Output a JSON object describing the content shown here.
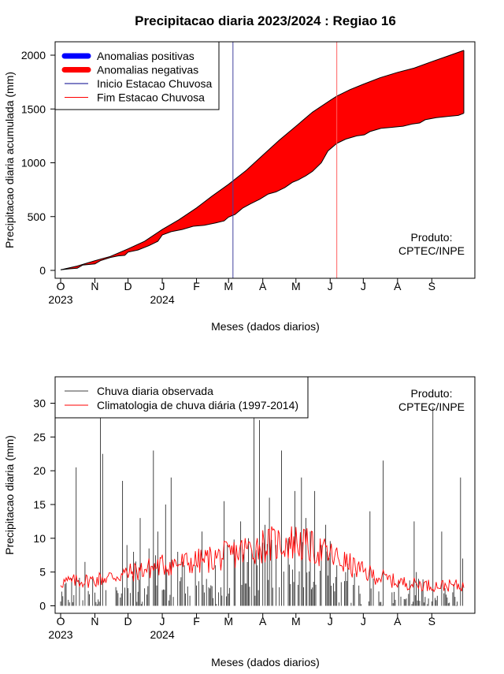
{
  "page": {
    "title": "Precipitacao diaria 2023/2024 : Regiao 16"
  },
  "chart_data": [
    {
      "type": "area",
      "title": "Precipitacao diaria 2023/2024 : Regiao 16",
      "xlabel": "Meses (dados diarios)",
      "ylabel": "Precipitacao diaria acumulada (mm)",
      "ylim": [
        0,
        2100
      ],
      "yticks": [
        0,
        500,
        1000,
        1500,
        2000
      ],
      "xlim_days": [
        -5,
        375
      ],
      "month_ticks": [
        {
          "day": 0,
          "label": "O"
        },
        {
          "day": 31,
          "label": "N"
        },
        {
          "day": 61,
          "label": "D"
        },
        {
          "day": 92,
          "label": "J"
        },
        {
          "day": 123,
          "label": "F"
        },
        {
          "day": 152,
          "label": "M"
        },
        {
          "day": 183,
          "label": "A"
        },
        {
          "day": 213,
          "label": "M"
        },
        {
          "day": 244,
          "label": "J"
        },
        {
          "day": 274,
          "label": "J"
        },
        {
          "day": 305,
          "label": "A"
        },
        {
          "day": 336,
          "label": "S"
        }
      ],
      "year_labels": [
        {
          "day": 0,
          "label": "2023"
        },
        {
          "day": 92,
          "label": "2024"
        }
      ],
      "credit": [
        "Produto:",
        "CPTEC/INPE"
      ],
      "legend": {
        "position": "top-left",
        "entries": [
          {
            "label": "Anomalias positivas",
            "color": "#0000ff",
            "style": "thick"
          },
          {
            "label": "Anomalias negativas",
            "color": "#ff0000",
            "style": "thick"
          },
          {
            "label": "Inicio Estacao Chuvosa",
            "color": "#00008b",
            "style": "thin"
          },
          {
            "label": "Fim Estacao Chuvosa",
            "color": "#ff0000",
            "style": "thin"
          }
        ]
      },
      "vlines": [
        {
          "day": 156,
          "color": "#4040a0",
          "name": "Inicio Estacao Chuvosa"
        },
        {
          "day": 250,
          "color": "#ff6060",
          "name": "Fim Estacao Chuvosa"
        }
      ],
      "series": [
        {
          "name": "Climatologia",
          "points": [
            [
              0,
              5
            ],
            [
              15,
              40
            ],
            [
              31,
              90
            ],
            [
              45,
              130
            ],
            [
              61,
              200
            ],
            [
              76,
              270
            ],
            [
              92,
              380
            ],
            [
              107,
              470
            ],
            [
              123,
              580
            ],
            [
              137,
              690
            ],
            [
              152,
              800
            ],
            [
              168,
              930
            ],
            [
              183,
              1070
            ],
            [
              198,
              1210
            ],
            [
              213,
              1340
            ],
            [
              228,
              1470
            ],
            [
              244,
              1580
            ],
            [
              250,
              1620
            ],
            [
              262,
              1680
            ],
            [
              274,
              1730
            ],
            [
              289,
              1790
            ],
            [
              305,
              1840
            ],
            [
              320,
              1880
            ],
            [
              336,
              1940
            ],
            [
              350,
              1990
            ],
            [
              365,
              2045
            ]
          ]
        },
        {
          "name": "Observado",
          "points": [
            [
              0,
              5
            ],
            [
              8,
              15
            ],
            [
              15,
              20
            ],
            [
              20,
              50
            ],
            [
              31,
              60
            ],
            [
              36,
              90
            ],
            [
              45,
              120
            ],
            [
              52,
              135
            ],
            [
              58,
              140
            ],
            [
              61,
              170
            ],
            [
              70,
              190
            ],
            [
              80,
              230
            ],
            [
              88,
              270
            ],
            [
              92,
              330
            ],
            [
              100,
              360
            ],
            [
              110,
              380
            ],
            [
              120,
              410
            ],
            [
              130,
              420
            ],
            [
              140,
              440
            ],
            [
              148,
              460
            ],
            [
              152,
              495
            ],
            [
              158,
              520
            ],
            [
              165,
              580
            ],
            [
              172,
              620
            ],
            [
              180,
              660
            ],
            [
              188,
              710
            ],
            [
              195,
              730
            ],
            [
              203,
              770
            ],
            [
              210,
              820
            ],
            [
              215,
              840
            ],
            [
              222,
              880
            ],
            [
              228,
              920
            ],
            [
              236,
              1000
            ],
            [
              242,
              1110
            ],
            [
              250,
              1180
            ],
            [
              258,
              1220
            ],
            [
              268,
              1250
            ],
            [
              275,
              1260
            ],
            [
              280,
              1290
            ],
            [
              290,
              1320
            ],
            [
              300,
              1330
            ],
            [
              310,
              1340
            ],
            [
              318,
              1360
            ],
            [
              325,
              1370
            ],
            [
              330,
              1400
            ],
            [
              340,
              1420
            ],
            [
              350,
              1430
            ],
            [
              360,
              1440
            ],
            [
              365,
              1460
            ]
          ]
        }
      ]
    },
    {
      "type": "bar",
      "xlabel": "Meses (dados diarios)",
      "ylabel": "Precipitacao diaria (mm)",
      "ylim": [
        0,
        32
      ],
      "yticks": [
        0,
        5,
        10,
        15,
        20,
        25,
        30
      ],
      "xlim_days": [
        -5,
        375
      ],
      "month_ticks": [
        {
          "day": 0,
          "label": "O"
        },
        {
          "day": 31,
          "label": "N"
        },
        {
          "day": 61,
          "label": "D"
        },
        {
          "day": 92,
          "label": "J"
        },
        {
          "day": 123,
          "label": "F"
        },
        {
          "day": 152,
          "label": "M"
        },
        {
          "day": 183,
          "label": "A"
        },
        {
          "day": 213,
          "label": "M"
        },
        {
          "day": 244,
          "label": "J"
        },
        {
          "day": 274,
          "label": "J"
        },
        {
          "day": 305,
          "label": "A"
        },
        {
          "day": 336,
          "label": "S"
        }
      ],
      "year_labels": [
        {
          "day": 0,
          "label": "2023"
        },
        {
          "day": 92,
          "label": "2024"
        }
      ],
      "credit": [
        "Produto:",
        "CPTEC/INPE"
      ],
      "legend": {
        "position": "top-left",
        "entries": [
          {
            "label": "Chuva diaria observada",
            "color": "#404040"
          },
          {
            "label": "Climatologia de chuva diária (1997-2014)",
            "color": "#ff0000"
          }
        ]
      },
      "observed_peaks": [
        {
          "day": 14,
          "value": 20.5
        },
        {
          "day": 22,
          "value": 6.5
        },
        {
          "day": 36,
          "value": 33
        },
        {
          "day": 38,
          "value": 22.5
        },
        {
          "day": 56,
          "value": 18.5
        },
        {
          "day": 60,
          "value": 9
        },
        {
          "day": 66,
          "value": 8
        },
        {
          "day": 72,
          "value": 13
        },
        {
          "day": 80,
          "value": 8.5
        },
        {
          "day": 84,
          "value": 23
        },
        {
          "day": 88,
          "value": 11
        },
        {
          "day": 95,
          "value": 15
        },
        {
          "day": 100,
          "value": 19
        },
        {
          "day": 106,
          "value": 8
        },
        {
          "day": 112,
          "value": 6
        },
        {
          "day": 128,
          "value": 11
        },
        {
          "day": 140,
          "value": 6
        },
        {
          "day": 148,
          "value": 15.5
        },
        {
          "day": 158,
          "value": 7
        },
        {
          "day": 163,
          "value": 12.5
        },
        {
          "day": 170,
          "value": 10
        },
        {
          "day": 175,
          "value": 32
        },
        {
          "day": 180,
          "value": 27.5
        },
        {
          "day": 185,
          "value": 12
        },
        {
          "day": 189,
          "value": 16
        },
        {
          "day": 195,
          "value": 9
        },
        {
          "day": 200,
          "value": 23
        },
        {
          "day": 206,
          "value": 10
        },
        {
          "day": 212,
          "value": 17
        },
        {
          "day": 218,
          "value": 19
        },
        {
          "day": 222,
          "value": 13
        },
        {
          "day": 226,
          "value": 11
        },
        {
          "day": 230,
          "value": 17
        },
        {
          "day": 236,
          "value": 9
        },
        {
          "day": 240,
          "value": 12
        },
        {
          "day": 250,
          "value": 6
        },
        {
          "day": 258,
          "value": 5
        },
        {
          "day": 270,
          "value": 3
        },
        {
          "day": 280,
          "value": 14
        },
        {
          "day": 292,
          "value": 21.5
        },
        {
          "day": 300,
          "value": 2
        },
        {
          "day": 320,
          "value": 12.5
        },
        {
          "day": 322,
          "value": 5
        },
        {
          "day": 337,
          "value": 29.5
        },
        {
          "day": 345,
          "value": 11
        },
        {
          "day": 362,
          "value": 19
        },
        {
          "day": 364,
          "value": 7
        }
      ],
      "climatology_profile": [
        [
          0,
          3.5
        ],
        [
          30,
          3.8
        ],
        [
          61,
          4.8
        ],
        [
          92,
          6
        ],
        [
          123,
          6.5
        ],
        [
          152,
          7.5
        ],
        [
          183,
          9
        ],
        [
          213,
          9.5
        ],
        [
          244,
          7.5
        ],
        [
          274,
          5
        ],
        [
          305,
          3.5
        ],
        [
          336,
          3
        ],
        [
          365,
          3
        ]
      ]
    }
  ]
}
